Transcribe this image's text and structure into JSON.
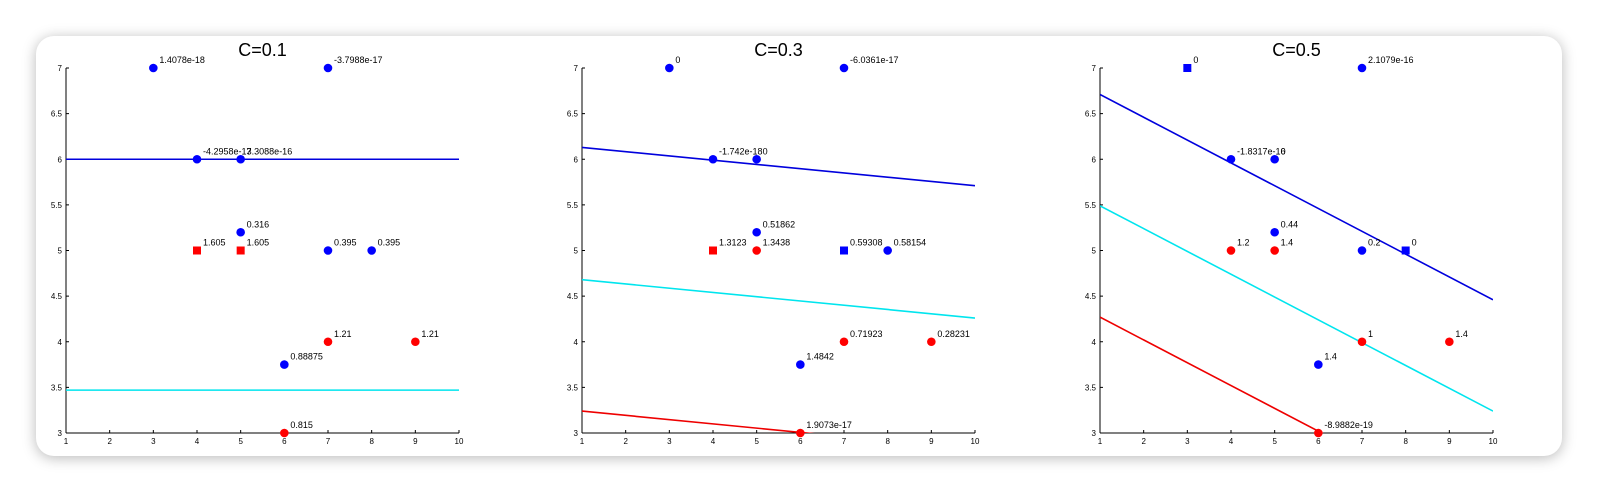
{
  "colors": {
    "blue_point": "#0000ff",
    "red_point": "#ff0000",
    "line_blue": "#0000dd",
    "line_cyan": "#00e5ee",
    "line_red": "#ee0000"
  },
  "chart_data": [
    {
      "type": "scatter",
      "title": "C=0.1",
      "xlim": [
        1,
        10
      ],
      "ylim": [
        3,
        7
      ],
      "xticks": [
        "1",
        "2",
        "3",
        "4",
        "5",
        "6",
        "7",
        "8",
        "9",
        "10"
      ],
      "yticks": [
        "3",
        "3.5",
        "4",
        "4.5",
        "5",
        "5.5",
        "6",
        "6.5",
        "7"
      ],
      "points": [
        {
          "x": 3,
          "y": 7,
          "class": "blue",
          "marker": "circle",
          "label": "1.4078e-18"
        },
        {
          "x": 7,
          "y": 7,
          "class": "blue",
          "marker": "circle",
          "label": "-3.7988e-17"
        },
        {
          "x": 4,
          "y": 6,
          "class": "blue",
          "marker": "circle",
          "label": "-4.2958e-17"
        },
        {
          "x": 5,
          "y": 6,
          "class": "blue",
          "marker": "circle",
          "label": "3.3088e-16"
        },
        {
          "x": 5,
          "y": 5.2,
          "class": "blue",
          "marker": "circle",
          "label": "0.316"
        },
        {
          "x": 4,
          "y": 5,
          "class": "red",
          "marker": "square",
          "label": "1.605"
        },
        {
          "x": 5,
          "y": 5,
          "class": "red",
          "marker": "square",
          "label": "1.605"
        },
        {
          "x": 7,
          "y": 5,
          "class": "blue",
          "marker": "circle",
          "label": "0.395"
        },
        {
          "x": 8,
          "y": 5,
          "class": "blue",
          "marker": "circle",
          "label": "0.395"
        },
        {
          "x": 7,
          "y": 4,
          "class": "red",
          "marker": "circle",
          "label": "1.21"
        },
        {
          "x": 9,
          "y": 4,
          "class": "red",
          "marker": "circle",
          "label": "1.21"
        },
        {
          "x": 6,
          "y": 3.75,
          "class": "blue",
          "marker": "circle",
          "label": "0.88875"
        },
        {
          "x": 6,
          "y": 3,
          "class": "red",
          "marker": "circle",
          "label": "0.815"
        }
      ],
      "lines": [
        {
          "color": "blue",
          "y_at_xmin": 6.0,
          "y_at_xmax": 6.0
        },
        {
          "color": "cyan",
          "y_at_xmin": 3.47,
          "y_at_xmax": 3.47
        }
      ]
    },
    {
      "type": "scatter",
      "title": "C=0.3",
      "xlim": [
        1,
        10
      ],
      "ylim": [
        3,
        7
      ],
      "xticks": [
        "1",
        "2",
        "3",
        "4",
        "5",
        "6",
        "7",
        "8",
        "9",
        "10"
      ],
      "yticks": [
        "3",
        "3.5",
        "4",
        "4.5",
        "5",
        "5.5",
        "6",
        "6.5",
        "7"
      ],
      "points": [
        {
          "x": 3,
          "y": 7,
          "class": "blue",
          "marker": "circle",
          "label": "0"
        },
        {
          "x": 7,
          "y": 7,
          "class": "blue",
          "marker": "circle",
          "label": "-6.0361e-17"
        },
        {
          "x": 4,
          "y": 6,
          "class": "blue",
          "marker": "circle",
          "label": "-1.742e-18"
        },
        {
          "x": 5,
          "y": 6,
          "class": "blue",
          "marker": "circle",
          "label": "0"
        },
        {
          "x": 5,
          "y": 5.2,
          "class": "blue",
          "marker": "circle",
          "label": "0.51862"
        },
        {
          "x": 4,
          "y": 5,
          "class": "red",
          "marker": "square",
          "label": "1.3123"
        },
        {
          "x": 5,
          "y": 5,
          "class": "red",
          "marker": "circle",
          "label": "1.3438"
        },
        {
          "x": 7,
          "y": 5,
          "class": "blue",
          "marker": "square",
          "label": "0.59308"
        },
        {
          "x": 8,
          "y": 5,
          "class": "blue",
          "marker": "circle",
          "label": "0.58154"
        },
        {
          "x": 7,
          "y": 4,
          "class": "red",
          "marker": "circle",
          "label": "0.71923"
        },
        {
          "x": 9,
          "y": 4,
          "class": "red",
          "marker": "circle",
          "label": "0.28231"
        },
        {
          "x": 6,
          "y": 3.75,
          "class": "blue",
          "marker": "circle",
          "label": "1.4842"
        },
        {
          "x": 6,
          "y": 3,
          "class": "red",
          "marker": "circle",
          "label": "1.9073e-17"
        }
      ],
      "lines": [
        {
          "color": "blue",
          "y_at_xmin": 6.13,
          "y_at_xmax": 5.71
        },
        {
          "color": "cyan",
          "y_at_xmin": 4.68,
          "y_at_xmax": 4.26
        },
        {
          "color": "red",
          "y_at_xmin": 3.24,
          "y_at_xmax": 2.82
        }
      ]
    },
    {
      "type": "scatter",
      "title": "C=0.5",
      "xlim": [
        1,
        10
      ],
      "ylim": [
        3,
        7
      ],
      "xticks": [
        "1",
        "2",
        "3",
        "4",
        "5",
        "6",
        "7",
        "8",
        "9",
        "10"
      ],
      "yticks": [
        "3",
        "3.5",
        "4",
        "4.5",
        "5",
        "5.5",
        "6",
        "6.5",
        "7"
      ],
      "points": [
        {
          "x": 3,
          "y": 7,
          "class": "blue",
          "marker": "square",
          "label": "0"
        },
        {
          "x": 7,
          "y": 7,
          "class": "blue",
          "marker": "circle",
          "label": "2.1079e-16"
        },
        {
          "x": 4,
          "y": 6,
          "class": "blue",
          "marker": "circle",
          "label": "-1.8317e-16"
        },
        {
          "x": 5,
          "y": 6,
          "class": "blue",
          "marker": "circle",
          "label": "0"
        },
        {
          "x": 5,
          "y": 5.2,
          "class": "blue",
          "marker": "circle",
          "label": "0.44"
        },
        {
          "x": 4,
          "y": 5,
          "class": "red",
          "marker": "circle",
          "label": "1.2"
        },
        {
          "x": 5,
          "y": 5,
          "class": "red",
          "marker": "circle",
          "label": "1.4"
        },
        {
          "x": 7,
          "y": 5,
          "class": "blue",
          "marker": "circle",
          "label": "0.2"
        },
        {
          "x": 8,
          "y": 5,
          "class": "blue",
          "marker": "square",
          "label": "0"
        },
        {
          "x": 7,
          "y": 4,
          "class": "red",
          "marker": "circle",
          "label": "1"
        },
        {
          "x": 9,
          "y": 4,
          "class": "red",
          "marker": "circle",
          "label": "1.4"
        },
        {
          "x": 6,
          "y": 3.75,
          "class": "blue",
          "marker": "circle",
          "label": "1.4"
        },
        {
          "x": 6,
          "y": 3,
          "class": "red",
          "marker": "circle",
          "label": "-8.9882e-19"
        }
      ],
      "lines": [
        {
          "color": "blue",
          "y_at_xmin": 6.71,
          "y_at_xmax": 4.46
        },
        {
          "color": "cyan",
          "y_at_xmin": 5.49,
          "y_at_xmax": 3.24
        },
        {
          "color": "red",
          "y_at_xmin": 4.27,
          "y_at_xmax": 2.02
        }
      ]
    }
  ]
}
